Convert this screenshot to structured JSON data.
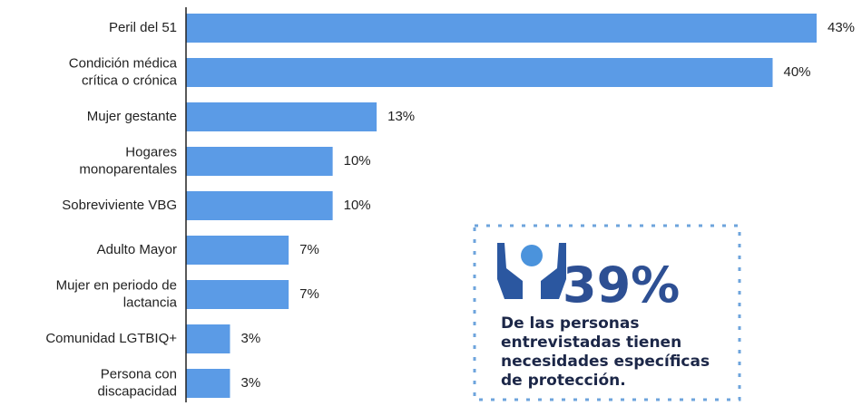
{
  "chart_data": {
    "type": "bar",
    "orientation": "horizontal",
    "categories": [
      "Peril del 51",
      "Condición médica\ncrítica o crónica",
      "Mujer gestante",
      "Hogares\nmonoparentales",
      "Sobreviviente VBG",
      "Adulto Mayor",
      "Mujer en periodo de\nlactancia",
      "Comunidad LGTBIQ+",
      "Persona con\ndiscapacidad"
    ],
    "values": [
      43,
      40,
      13,
      10,
      10,
      7,
      7,
      3,
      3
    ],
    "value_labels": [
      "43%",
      "40%",
      "13%",
      "10%",
      "10%",
      "7%",
      "7%",
      "3%",
      "3%"
    ],
    "color": "#5b9be6",
    "xlim": [
      0,
      43
    ],
    "callout": {
      "title": "39%",
      "text": [
        "De las personas",
        "entrevistadas tienen",
        "necesidades específicas",
        "de protección."
      ]
    }
  }
}
